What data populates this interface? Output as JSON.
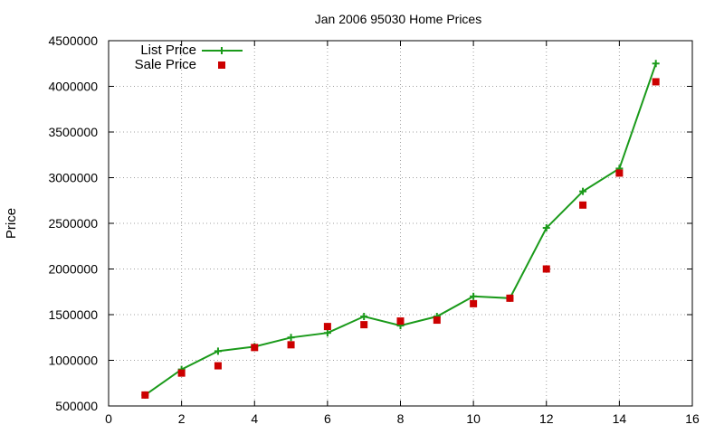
{
  "chart_data": {
    "type": "line",
    "title": "Jan 2006 95030 Home Prices",
    "xlabel": "",
    "ylabel": "Price",
    "xlim": [
      0,
      16
    ],
    "ylim": [
      500000,
      4500000
    ],
    "x_ticks": [
      0,
      2,
      4,
      6,
      8,
      10,
      12,
      14,
      16
    ],
    "y_ticks": [
      500000,
      1000000,
      1500000,
      2000000,
      2500000,
      3000000,
      3500000,
      4000000,
      4500000
    ],
    "grid": true,
    "legend_position": "top-left",
    "series": [
      {
        "name": "List Price",
        "style": "line+cross",
        "color": "#1a9a1a",
        "x": [
          1,
          2,
          3,
          4,
          5,
          6,
          7,
          8,
          9,
          10,
          11,
          12,
          13,
          14,
          15
        ],
        "values": [
          620000,
          900000,
          1100000,
          1150000,
          1250000,
          1300000,
          1480000,
          1380000,
          1480000,
          1700000,
          1680000,
          2450000,
          2850000,
          3100000,
          4250000
        ]
      },
      {
        "name": "Sale Price",
        "style": "square",
        "color": "#cc0000",
        "x": [
          1,
          2,
          3,
          4,
          5,
          6,
          7,
          8,
          9,
          10,
          11,
          12,
          13,
          14,
          15
        ],
        "values": [
          620000,
          860000,
          940000,
          1140000,
          1170000,
          1370000,
          1390000,
          1430000,
          1440000,
          1620000,
          1680000,
          2000000,
          2700000,
          3050000,
          4050000
        ]
      }
    ]
  }
}
